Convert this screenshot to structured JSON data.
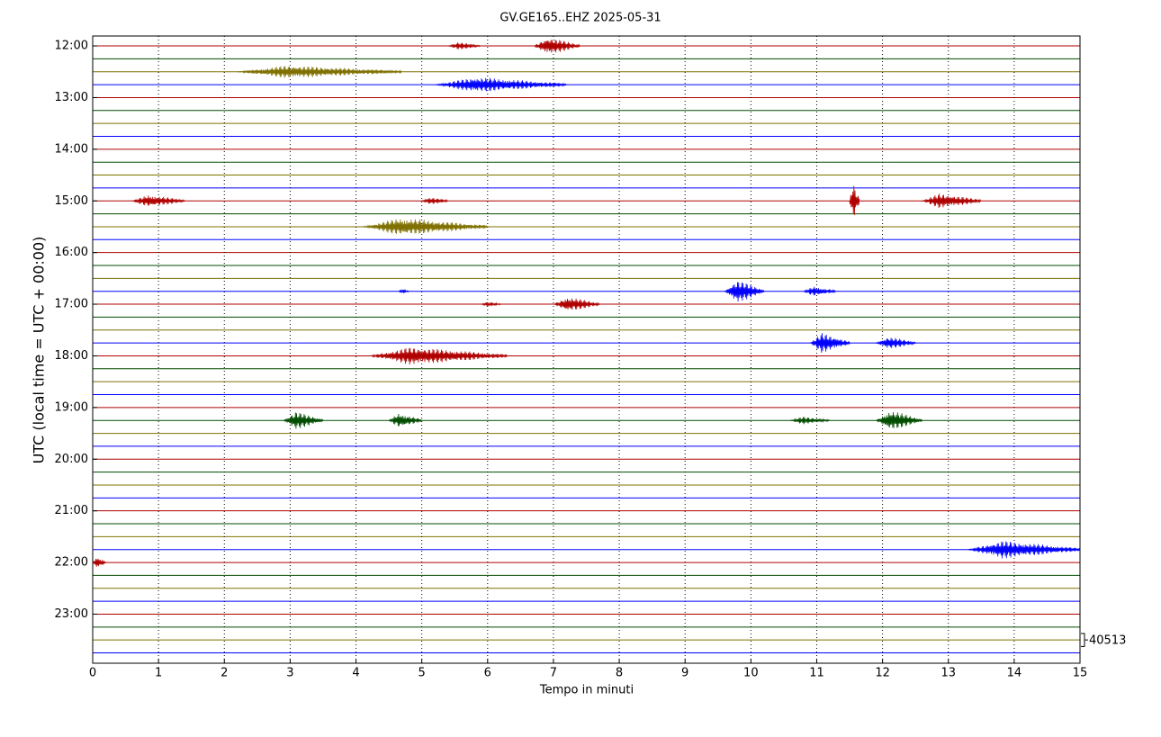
{
  "chart_data": {
    "type": "helicorder",
    "title": "GV.GE165..EHZ 2025-05-31",
    "xlabel": "Tempo in minuti",
    "ylabel": "UTC (local time = UTC + 00:00)",
    "xlim": [
      0,
      15
    ],
    "xticks": [
      0,
      1,
      2,
      3,
      4,
      5,
      6,
      7,
      8,
      9,
      10,
      11,
      12,
      13,
      14,
      15
    ],
    "ylim": [
      -0.77,
      47.8
    ],
    "yticks": [
      {
        "value": 0,
        "label": "12:00"
      },
      {
        "value": 4,
        "label": "13:00"
      },
      {
        "value": 8,
        "label": "14:00"
      },
      {
        "value": 12,
        "label": "15:00"
      },
      {
        "value": 16,
        "label": "16:00"
      },
      {
        "value": 20,
        "label": "17:00"
      },
      {
        "value": 24,
        "label": "18:00"
      },
      {
        "value": 28,
        "label": "19:00"
      },
      {
        "value": 32,
        "label": "20:00"
      },
      {
        "value": 36,
        "label": "21:00"
      },
      {
        "value": 40,
        "label": "22:00"
      },
      {
        "value": 44,
        "label": "23:00"
      }
    ],
    "colors": [
      "#b00000",
      "#004d00",
      "#7f7000",
      "#0000ff"
    ],
    "grid": true,
    "scale": {
      "row": 46,
      "label": "40513"
    },
    "events": [
      {
        "row": 0,
        "start": 5.4,
        "end": 5.9,
        "amplitude": 0.3
      },
      {
        "row": 0,
        "start": 6.7,
        "end": 7.4,
        "amplitude": 0.7
      },
      {
        "row": 2,
        "start": 2.2,
        "end": 4.7,
        "amplitude": 0.5
      },
      {
        "row": 3,
        "start": 5.2,
        "end": 7.2,
        "amplitude": 0.6
      },
      {
        "row": 12,
        "start": 0.6,
        "end": 1.4,
        "amplitude": 0.5
      },
      {
        "row": 12,
        "start": 5.0,
        "end": 5.4,
        "amplitude": 0.3
      },
      {
        "row": 12,
        "start": 11.5,
        "end": 11.65,
        "amplitude": 1.5
      },
      {
        "row": 12,
        "start": 12.6,
        "end": 13.5,
        "amplitude": 0.6
      },
      {
        "row": 14,
        "start": 4.1,
        "end": 6.0,
        "amplitude": 0.7
      },
      {
        "row": 19,
        "start": 4.65,
        "end": 4.8,
        "amplitude": 0.2
      },
      {
        "row": 19,
        "start": 9.6,
        "end": 10.2,
        "amplitude": 0.9
      },
      {
        "row": 19,
        "start": 10.8,
        "end": 11.3,
        "amplitude": 0.4
      },
      {
        "row": 20,
        "start": 5.9,
        "end": 6.2,
        "amplitude": 0.2
      },
      {
        "row": 20,
        "start": 7.0,
        "end": 7.7,
        "amplitude": 0.6
      },
      {
        "row": 23,
        "start": 10.9,
        "end": 11.5,
        "amplitude": 0.8
      },
      {
        "row": 23,
        "start": 11.9,
        "end": 12.5,
        "amplitude": 0.5
      },
      {
        "row": 24,
        "start": 4.2,
        "end": 6.3,
        "amplitude": 0.7
      },
      {
        "row": 29,
        "start": 2.9,
        "end": 3.5,
        "amplitude": 0.7
      },
      {
        "row": 29,
        "start": 4.5,
        "end": 5.0,
        "amplitude": 0.6
      },
      {
        "row": 29,
        "start": 10.6,
        "end": 11.2,
        "amplitude": 0.3
      },
      {
        "row": 29,
        "start": 11.9,
        "end": 12.6,
        "amplitude": 0.8
      },
      {
        "row": 39,
        "start": 13.3,
        "end": 15,
        "amplitude": 0.7
      },
      {
        "row": 40,
        "start": 0,
        "end": 0.2,
        "amplitude": 0.5
      }
    ]
  }
}
